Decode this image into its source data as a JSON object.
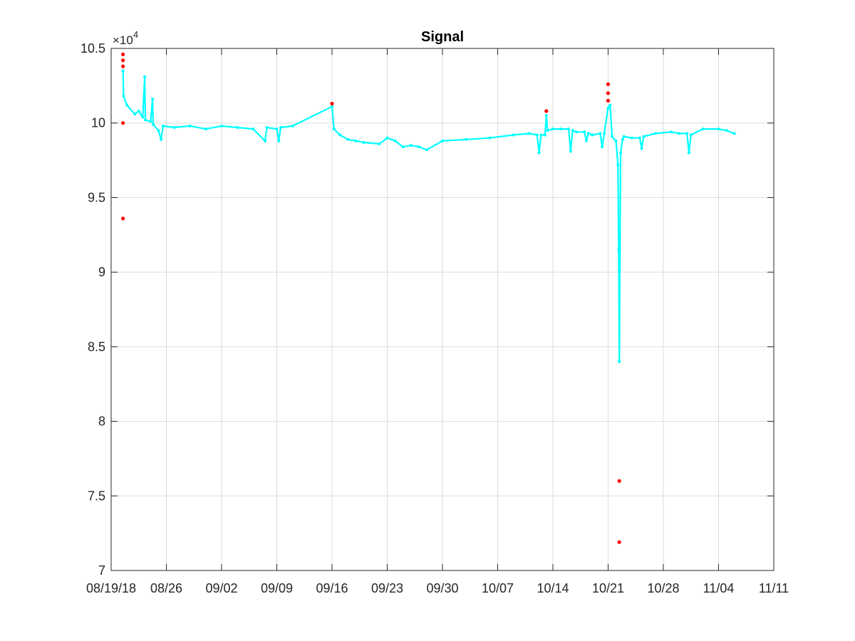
{
  "chart_data": {
    "type": "line",
    "title": "Signal",
    "xlabel": "",
    "ylabel": "",
    "y_exponent_prefix": "×10",
    "y_exponent": "4",
    "ylim": [
      7,
      10.5
    ],
    "xlim": [
      "2018-08-19",
      "2018-11-11"
    ],
    "grid": true,
    "colors": {
      "signal": "#00ffff",
      "outliers": "#ff0000",
      "axes": "#262626",
      "grid": "#dcdcdc"
    },
    "x_ticks": [
      {
        "date": "2018-08-19",
        "label": "08/19/18"
      },
      {
        "date": "2018-08-26",
        "label": "08/26"
      },
      {
        "date": "2018-09-02",
        "label": "09/02"
      },
      {
        "date": "2018-09-09",
        "label": "09/09"
      },
      {
        "date": "2018-09-16",
        "label": "09/16"
      },
      {
        "date": "2018-09-23",
        "label": "09/23"
      },
      {
        "date": "2018-09-30",
        "label": "09/30"
      },
      {
        "date": "2018-10-07",
        "label": "10/07"
      },
      {
        "date": "2018-10-14",
        "label": "10/14"
      },
      {
        "date": "2018-10-21",
        "label": "10/21"
      },
      {
        "date": "2018-10-28",
        "label": "10/28"
      },
      {
        "date": "2018-11-04",
        "label": "11/04"
      },
      {
        "date": "2018-11-11",
        "label": "11/11"
      }
    ],
    "y_ticks": [
      {
        "value": 7,
        "label": "7"
      },
      {
        "value": 7.5,
        "label": "7.5"
      },
      {
        "value": 8,
        "label": "8"
      },
      {
        "value": 8.5,
        "label": "8.5"
      },
      {
        "value": 9,
        "label": "9"
      },
      {
        "value": 9.5,
        "label": "9.5"
      },
      {
        "value": 10,
        "label": "10"
      },
      {
        "value": 10.5,
        "label": "10.5"
      }
    ],
    "series": [
      {
        "points": [
          [
            "2018-08-20T12:00",
            10.35
          ],
          [
            "2018-08-20T14:00",
            10.18
          ],
          [
            "2018-08-21",
            10.12
          ],
          [
            "2018-08-22",
            10.06
          ],
          [
            "2018-08-22T12:00",
            10.08
          ],
          [
            "2018-08-23",
            10.04
          ],
          [
            "2018-08-23T06:00",
            10.31
          ],
          [
            "2018-08-23T08:00",
            10.02
          ],
          [
            "2018-08-24",
            10.01
          ],
          [
            "2018-08-24T06:00",
            10.16
          ],
          [
            "2018-08-24T08:00",
            9.99
          ],
          [
            "2018-08-25",
            9.95
          ],
          [
            "2018-08-25T08:00",
            9.89
          ],
          [
            "2018-08-25T14:00",
            9.98
          ],
          [
            "2018-08-27",
            9.97
          ],
          [
            "2018-08-29",
            9.98
          ],
          [
            "2018-08-31",
            9.96
          ],
          [
            "2018-09-02",
            9.98
          ],
          [
            "2018-09-04",
            9.97
          ],
          [
            "2018-09-06",
            9.96
          ],
          [
            "2018-09-07T12:00",
            9.88
          ],
          [
            "2018-09-07T18:00",
            9.97
          ],
          [
            "2018-09-09",
            9.96
          ],
          [
            "2018-09-09T06:00",
            9.88
          ],
          [
            "2018-09-09T12:00",
            9.97
          ],
          [
            "2018-09-11",
            9.98
          ],
          [
            "2018-09-16",
            10.11
          ],
          [
            "2018-09-16T06:00",
            9.96
          ],
          [
            "2018-09-17",
            9.92
          ],
          [
            "2018-09-18",
            9.89
          ],
          [
            "2018-09-19",
            9.88
          ],
          [
            "2018-09-20",
            9.87
          ],
          [
            "2018-09-22",
            9.86
          ],
          [
            "2018-09-23",
            9.9
          ],
          [
            "2018-09-24",
            9.88
          ],
          [
            "2018-09-25",
            9.84
          ],
          [
            "2018-09-26",
            9.85
          ],
          [
            "2018-09-27",
            9.84
          ],
          [
            "2018-09-28",
            9.82
          ],
          [
            "2018-09-30",
            9.88
          ],
          [
            "2018-10-03",
            9.89
          ],
          [
            "2018-10-06",
            9.9
          ],
          [
            "2018-10-09",
            9.92
          ],
          [
            "2018-10-11",
            9.93
          ],
          [
            "2018-10-12",
            9.92
          ],
          [
            "2018-10-12T06:00",
            9.8
          ],
          [
            "2018-10-12T12:00",
            9.92
          ],
          [
            "2018-10-13",
            9.92
          ],
          [
            "2018-10-13T04:00",
            10.05
          ],
          [
            "2018-10-13T08:00",
            9.95
          ],
          [
            "2018-10-14",
            9.96
          ],
          [
            "2018-10-15",
            9.96
          ],
          [
            "2018-10-16",
            9.96
          ],
          [
            "2018-10-16T06:00",
            9.81
          ],
          [
            "2018-10-16T12:00",
            9.95
          ],
          [
            "2018-10-17",
            9.94
          ],
          [
            "2018-10-18",
            9.94
          ],
          [
            "2018-10-18T06:00",
            9.88
          ],
          [
            "2018-10-18T12:00",
            9.93
          ],
          [
            "2018-10-19",
            9.92
          ],
          [
            "2018-10-20",
            9.93
          ],
          [
            "2018-10-20T06:00",
            9.84
          ],
          [
            "2018-10-20T12:00",
            9.93
          ],
          [
            "2018-10-21",
            10.1
          ],
          [
            "2018-10-21T06:00",
            10.12
          ],
          [
            "2018-10-21T12:00",
            9.91
          ],
          [
            "2018-10-22",
            9.88
          ],
          [
            "2018-10-22T06:00",
            9.72
          ],
          [
            "2018-10-22T08:00",
            9.15
          ],
          [
            "2018-10-22T10:00",
            8.4
          ],
          [
            "2018-10-22T14:00",
            9.8
          ],
          [
            "2018-10-22T20:00",
            9.89
          ],
          [
            "2018-10-23",
            9.91
          ],
          [
            "2018-10-24",
            9.9
          ],
          [
            "2018-10-25",
            9.9
          ],
          [
            "2018-10-25T06:00",
            9.83
          ],
          [
            "2018-10-25T12:00",
            9.91
          ],
          [
            "2018-10-27",
            9.93
          ],
          [
            "2018-10-29",
            9.94
          ],
          [
            "2018-10-30",
            9.93
          ],
          [
            "2018-10-31",
            9.93
          ],
          [
            "2018-10-31T06:00",
            9.8
          ],
          [
            "2018-10-31T12:00",
            9.92
          ],
          [
            "2018-11-02",
            9.96
          ],
          [
            "2018-11-04",
            9.96
          ],
          [
            "2018-11-05",
            9.95
          ],
          [
            "2018-11-06",
            9.93
          ]
        ]
      },
      {
        "points": [
          [
            "2018-08-20T12:00",
            10.46
          ],
          [
            "2018-08-20T12:00",
            10.42
          ],
          [
            "2018-08-20T12:00",
            10.38
          ],
          [
            "2018-08-20T12:00",
            10.0
          ],
          [
            "2018-08-20T12:00",
            9.36
          ],
          [
            "2018-09-16",
            10.13
          ],
          [
            "2018-10-13T04:00",
            10.08
          ],
          [
            "2018-10-21",
            10.26
          ],
          [
            "2018-10-21",
            10.2
          ],
          [
            "2018-10-21",
            10.15
          ],
          [
            "2018-10-22T10:00",
            7.6
          ],
          [
            "2018-10-22T10:00",
            7.19
          ]
        ]
      }
    ]
  }
}
